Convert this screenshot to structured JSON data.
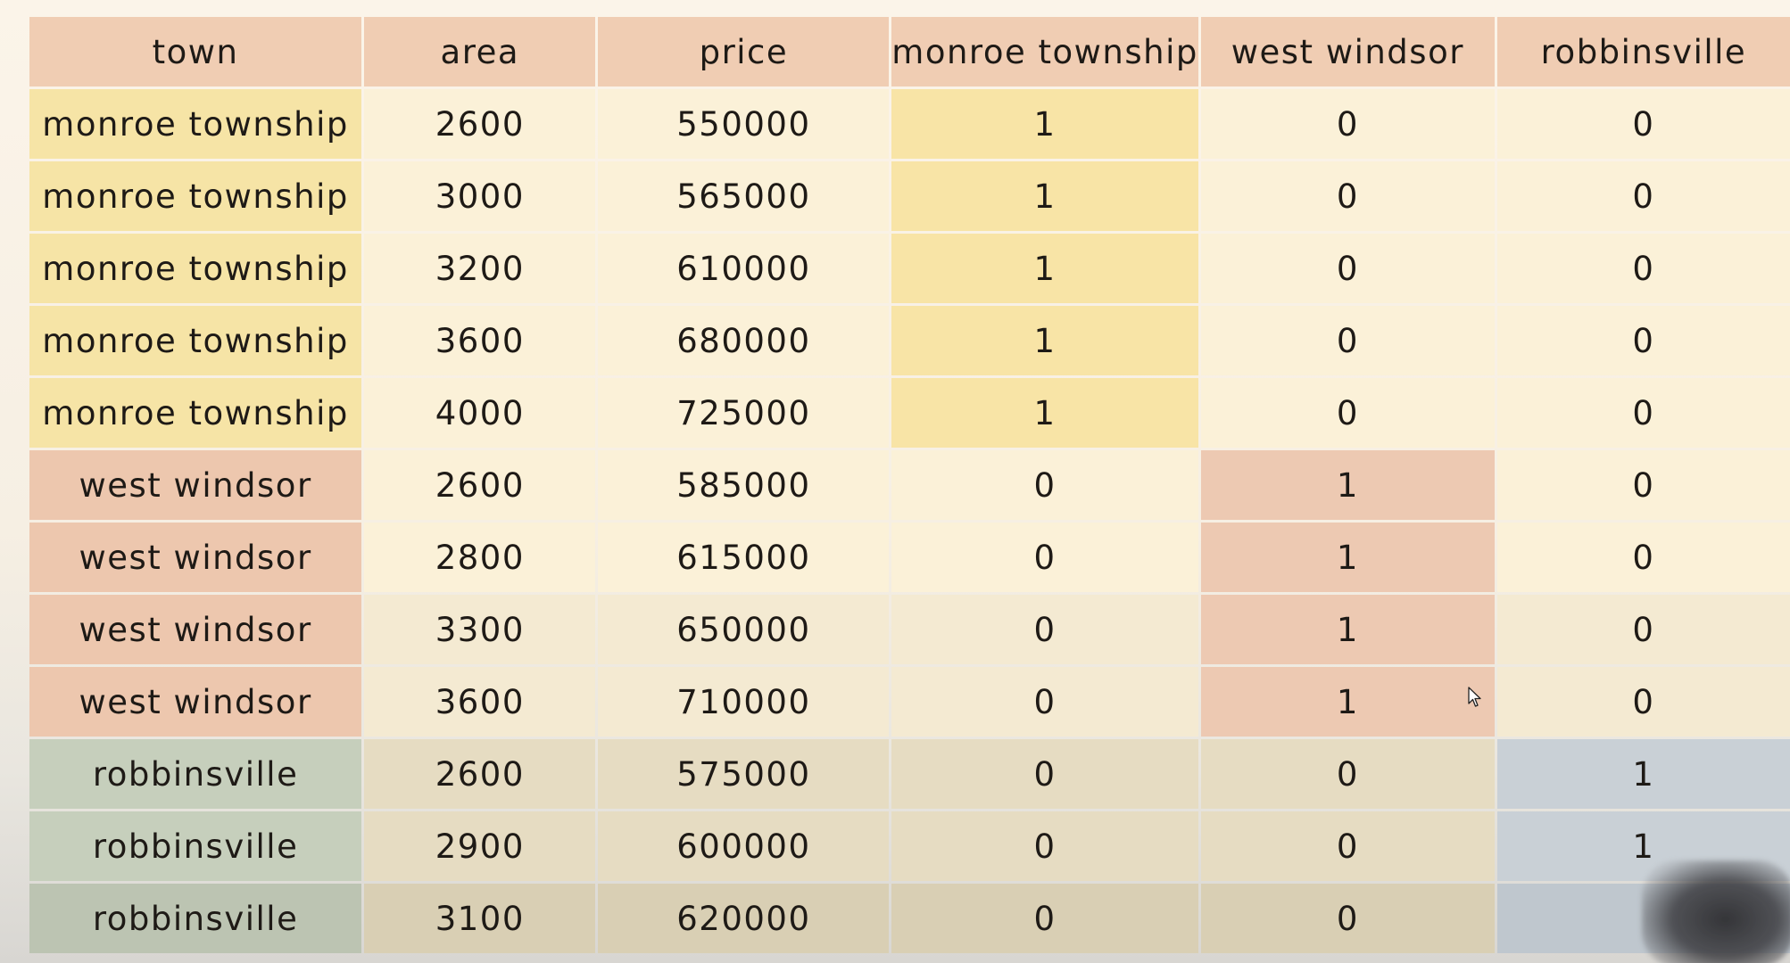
{
  "table": {
    "headers": [
      "town",
      "area",
      "price",
      "monroe township",
      "west windsor",
      "robbinsville"
    ],
    "rows": [
      [
        "monroe township",
        "2600",
        "550000",
        "1",
        "0",
        "0"
      ],
      [
        "monroe township",
        "3000",
        "565000",
        "1",
        "0",
        "0"
      ],
      [
        "monroe township",
        "3200",
        "610000",
        "1",
        "0",
        "0"
      ],
      [
        "monroe township",
        "3600",
        "680000",
        "1",
        "0",
        "0"
      ],
      [
        "monroe township",
        "4000",
        "725000",
        "1",
        "0",
        "0"
      ],
      [
        "west windsor",
        "2600",
        "585000",
        "0",
        "1",
        "0"
      ],
      [
        "west windsor",
        "2800",
        "615000",
        "0",
        "1",
        "0"
      ],
      [
        "west windsor",
        "3300",
        "650000",
        "0",
        "1",
        "0"
      ],
      [
        "west windsor",
        "3600",
        "710000",
        "0",
        "1",
        "0"
      ],
      [
        "robbinsville",
        "2600",
        "575000",
        "0",
        "0",
        "1"
      ],
      [
        "robbinsville",
        "2900",
        "600000",
        "0",
        "0",
        "1"
      ],
      [
        "robbinsville",
        "3100",
        "620000",
        "0",
        "0",
        ""
      ]
    ]
  },
  "colors": {
    "header": "#f0cdb3",
    "monroe_township": "#f6e4a6",
    "west_windsor": "#edc7ae",
    "robbinsville": "#cbd3c1",
    "plain_cell": "#fbf1d8"
  },
  "icons": {
    "cursor": "mouse-pointer-icon"
  }
}
